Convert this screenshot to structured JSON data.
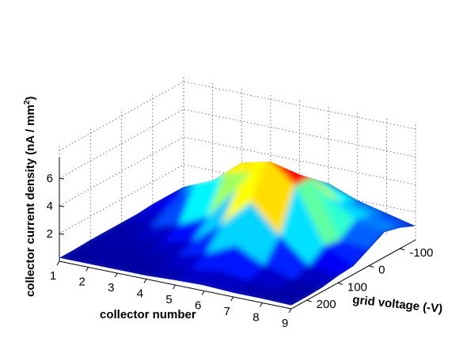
{
  "chart_data": {
    "type": "surface",
    "xlabel": "collector number",
    "ylabel": "grid voltage (-V)",
    "zlabel": "collector current density (nA / mm",
    "zlabel_sup": "2",
    "zlabel_close": ")",
    "x_ticks": [
      "1",
      "2",
      "3",
      "4",
      "5",
      "6",
      "7",
      "8",
      "9"
    ],
    "y_ticks": [
      "200",
      "100",
      "0",
      "-100"
    ],
    "z_ticks": [
      "2",
      "4",
      "6"
    ],
    "x_values": [
      1,
      2,
      3,
      4,
      5,
      6,
      7,
      8,
      9
    ],
    "y_values": [
      250,
      200,
      150,
      100,
      50,
      0,
      -50,
      -100,
      -150
    ],
    "zlim": [
      0,
      7.5
    ],
    "colormap": "jet",
    "grid": true,
    "z": [
      [
        0.25,
        0.25,
        0.25,
        0.25,
        0.35,
        0.4,
        0.3,
        0.3,
        0.25
      ],
      [
        0.25,
        0.25,
        0.25,
        0.3,
        0.5,
        0.8,
        0.5,
        0.3,
        0.25
      ],
      [
        0.3,
        0.3,
        0.3,
        0.4,
        1.0,
        2.0,
        1.0,
        0.4,
        0.3
      ],
      [
        0.3,
        0.3,
        0.4,
        0.8,
        2.5,
        4.5,
        2.5,
        0.8,
        0.5
      ],
      [
        0.3,
        0.4,
        1.0,
        2.0,
        4.5,
        7.2,
        5.5,
        1.6,
        0.6
      ],
      [
        0.3,
        1.0,
        3.5,
        4.5,
        5.0,
        7.6,
        5.5,
        1.4,
        1.2
      ],
      [
        0.4,
        1.5,
        5.0,
        5.2,
        4.5,
        6.0,
        3.5,
        2.2,
        1.8
      ],
      [
        0.4,
        1.5,
        4.8,
        5.0,
        4.0,
        4.0,
        2.5,
        2.0,
        1.5
      ],
      [
        0.4,
        1.3,
        3.0,
        3.5,
        3.0,
        2.8,
        2.0,
        1.5,
        1.0
      ]
    ]
  }
}
